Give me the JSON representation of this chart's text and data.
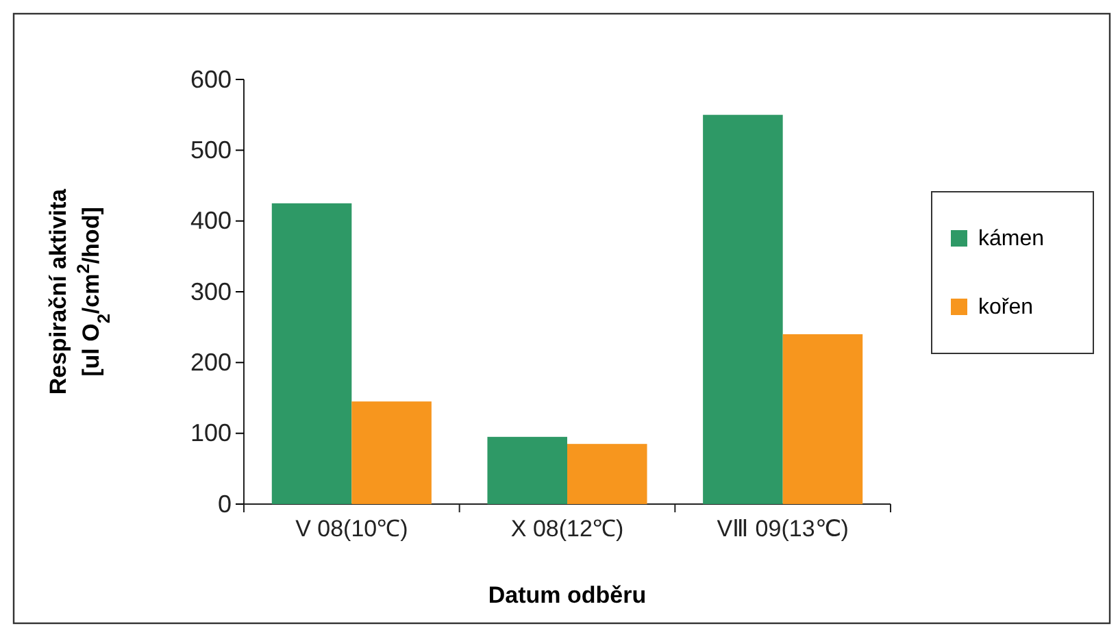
{
  "chart_data": {
    "type": "bar",
    "xlabel": "Datum odběru",
    "ylabel": "Respirační aktivita\n[ul O$_{2}$/cm$^{2}$/hod]",
    "categories": [
      "V 08(10℃)",
      "X 08(12℃)",
      "VⅢ 09(13℃)"
    ],
    "series": [
      {
        "name": "kámen",
        "color": "#2e9966",
        "values": [
          425,
          95,
          550
        ]
      },
      {
        "name": "kořen",
        "color": "#f7961e",
        "values": [
          145,
          85,
          240
        ]
      }
    ],
    "ylim": [
      0,
      600
    ],
    "yticks": [
      0,
      100,
      200,
      300,
      400,
      500,
      600
    ],
    "grid": false,
    "legend": "right"
  }
}
